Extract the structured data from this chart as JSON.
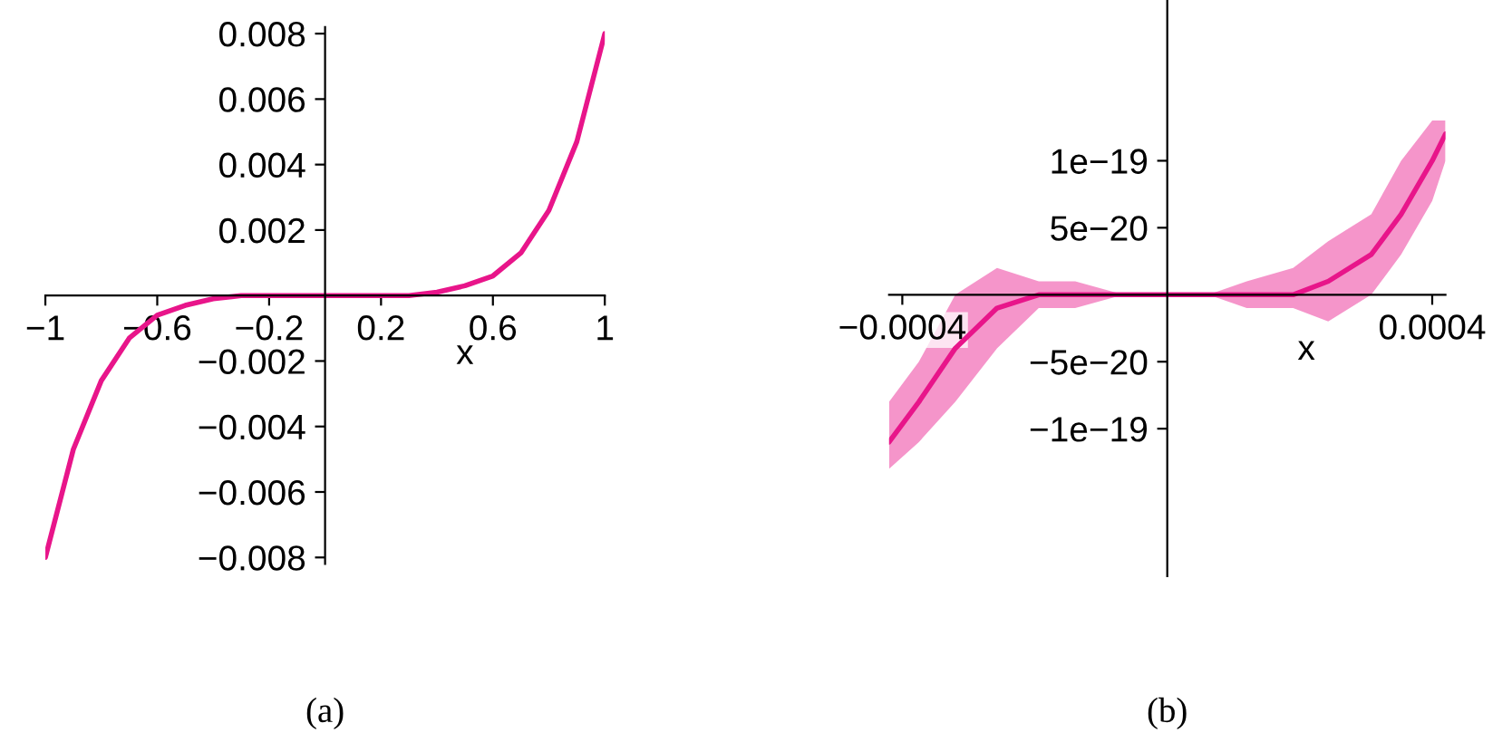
{
  "chart_data": [
    {
      "type": "line",
      "xlabel": "x",
      "annotations": [
        "(a)"
      ],
      "grid": false,
      "x": [
        -1,
        -0.9,
        -0.8,
        -0.7,
        -0.6,
        -0.5,
        -0.4,
        -0.3,
        -0.2,
        -0.1,
        0,
        0.1,
        0.2,
        0.3,
        0.4,
        0.5,
        0.6,
        0.7,
        0.8,
        0.9,
        1
      ],
      "series": [
        {
          "color": "#e8158a",
          "values": [
            -0.008,
            -0.0047,
            -0.0026,
            -0.0013,
            -0.0006,
            -0.0003,
            -0.0001,
            0,
            0,
            0,
            0,
            0,
            0,
            0,
            0.0001,
            0.0003,
            0.0006,
            0.0013,
            0.0026,
            0.0047,
            0.008
          ]
        }
      ],
      "xlim": [
        -1,
        1
      ],
      "ylim": [
        -0.0082,
        0.0082
      ],
      "xticks": [
        {
          "value": -1,
          "label": "−1"
        },
        {
          "value": -0.6,
          "label": "−0.6"
        },
        {
          "value": -0.2,
          "label": "−0.2"
        },
        0.2,
        0.6,
        1
      ],
      "yticks": [
        {
          "value": -0.008,
          "label": "−0.008"
        },
        {
          "value": -0.006,
          "label": "−0.006"
        },
        {
          "value": -0.004,
          "label": "−0.004"
        },
        {
          "value": -0.002,
          "label": "−0.002"
        },
        0.002,
        0.004,
        0.006,
        0.008
      ]
    },
    {
      "type": "line",
      "xlabel": "x",
      "annotations": [
        "(b)"
      ],
      "grid": false,
      "x": [
        -0.00042,
        -0.000375,
        -0.00032,
        -0.000257,
        -0.000194,
        -0.000139,
        -6.6e-05,
        0,
        6.2e-05,
        0.00012,
        0.00019,
        0.000243,
        0.000308,
        0.000353,
        0.0004,
        0.00042
      ],
      "series": [
        {
          "color": "#e8158a",
          "values": [
            -1.1e-19,
            -8e-20,
            -4e-20,
            -1e-20,
            0,
            0,
            0,
            0,
            0,
            0,
            0,
            1e-20,
            3e-20,
            6e-20,
            1e-19,
            1.2e-19
          ],
          "lower": [
            -1.3e-19,
            -1.1e-19,
            -8e-20,
            -4e-20,
            -1e-20,
            -1e-20,
            0,
            0,
            0,
            -1e-20,
            -1e-20,
            -2e-20,
            0,
            3e-20,
            7e-20,
            1e-19
          ],
          "upper": [
            -8e-20,
            -5e-20,
            0,
            2e-20,
            1e-20,
            1e-20,
            0,
            0,
            0,
            1e-20,
            2e-20,
            4e-20,
            6e-20,
            1e-19,
            1.3e-19,
            1.3e-19
          ]
        }
      ],
      "xlim": [
        -0.00042,
        0.00042
      ],
      "ylim": [
        -2.1e-19,
        2.2e-19
      ],
      "xticks": [
        {
          "value": -0.0004,
          "label": "−0.0004"
        },
        {
          "value": 0.0004,
          "label": "0.0004"
        }
      ],
      "yticks": [
        {
          "value": -1e-19,
          "label": "−1e−19"
        },
        {
          "value": -5e-20,
          "label": "−5e−20"
        },
        {
          "value": 5e-20,
          "label": "5e−20"
        },
        {
          "value": 1e-19,
          "label": "1e−19"
        }
      ]
    }
  ]
}
